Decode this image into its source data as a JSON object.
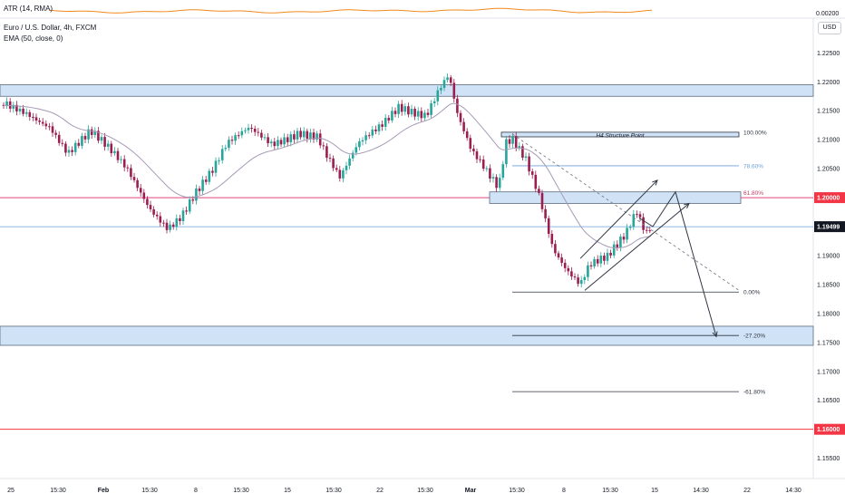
{
  "indicator_pane": {
    "label": "ATR (14, RMA)",
    "value": "0.00200"
  },
  "legend": {
    "title": "Euro / U.S. Dollar, 4h, FXCM",
    "ema": "EMA (50, close, 0)"
  },
  "currency_chip": "USD",
  "colors": {
    "up": "#26a69a",
    "down": "#9c1e4f",
    "zone_fill": "#cfe2f6",
    "zone_border": "#5b6b80",
    "red_level": "#f23645",
    "pink_level": "#e0457b",
    "blue_level": "#6d9fd8",
    "ema": "#a79ab6",
    "channel": "#2f3540",
    "atr": "#f2881c",
    "fib618": "#c24164"
  },
  "chart_data": {
    "type": "candlestick",
    "title": "Euro / U.S. Dollar, 4h, FXCM",
    "symbol": "EURUSD",
    "timeframe": "4h",
    "ylim": [
      1.1515,
      1.231
    ],
    "yticks": [
      "1.22500",
      "1.22000",
      "1.21500",
      "1.21000",
      "1.20500",
      "1.20000",
      "1.19500",
      "1.19000",
      "1.18500",
      "1.18000",
      "1.17500",
      "1.17000",
      "1.16500",
      "1.16000",
      "1.15500"
    ],
    "xticks": [
      "25",
      "15:30",
      "Feb",
      "15:30",
      "8",
      "15:30",
      "15",
      "15:30",
      "22",
      "15:30",
      "Mar",
      "15:30",
      "8",
      "15:30",
      "15",
      "14:30",
      "22",
      "14:30"
    ],
    "price_labels": [
      {
        "text": "1.20000",
        "price": 1.2,
        "style": "red"
      },
      {
        "text": "1.19499",
        "price": 1.19499,
        "style": "dark"
      },
      {
        "text": "1.16000",
        "price": 1.16,
        "style": "red"
      }
    ],
    "current_price": 1.19499,
    "zones": [
      {
        "from": 1.2175,
        "to": 1.2195
      },
      {
        "from": 1.1745,
        "to": 1.1778
      }
    ],
    "horizontal_lines": [
      {
        "price": 1.2,
        "color": "pink"
      },
      {
        "price": 1.16,
        "color": "red"
      }
    ],
    "fibonacci": {
      "levels": [
        {
          "label": "100.00%",
          "price": 1.2113
        },
        {
          "label": "78.60%",
          "price": 1.2055
        },
        {
          "label": "61.80%",
          "price": 1.2009
        },
        {
          "label": "0.00%",
          "price": 1.1837
        },
        {
          "label": "-27.20%",
          "price": 1.1762
        },
        {
          "label": "-61.80%",
          "price": 1.1665
        }
      ]
    },
    "structure_box": {
      "label": "H4 Structure Point",
      "from": 1.2105,
      "to": 1.2113
    },
    "support_box": {
      "from": 1.199,
      "to": 1.201
    },
    "ema_label": "EMA (50, close, 0)",
    "atr_label": "ATR (14, RMA)"
  }
}
